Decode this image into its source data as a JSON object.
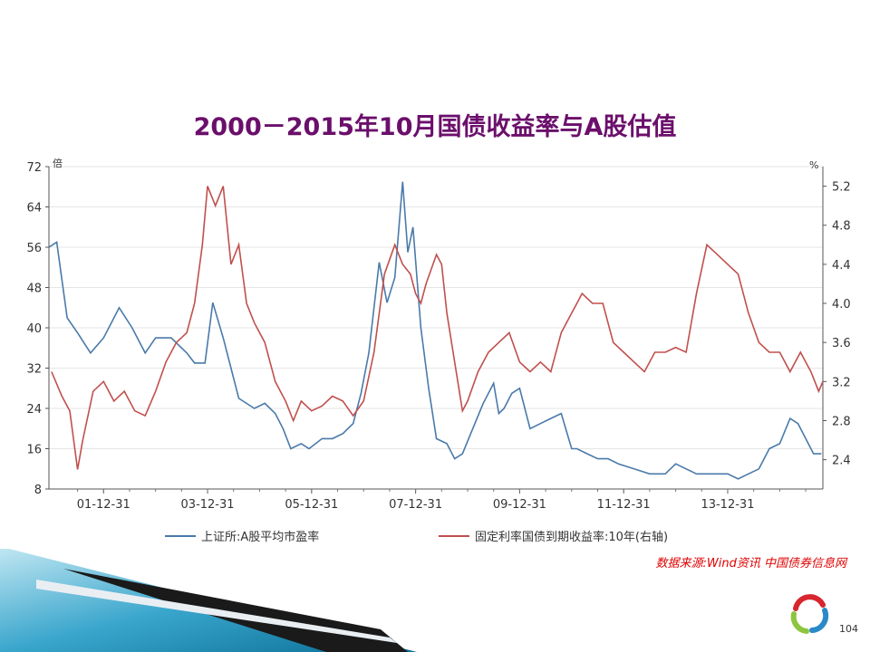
{
  "title": "2000－2015年10月国债收益率与A股估值",
  "source_note": "数据来源:Wind资讯 中国债券信息网",
  "page_number": "104",
  "colors": {
    "pe_series": "#4a7aaa",
    "yield_series": "#c0504d",
    "title": "#6b0f6b",
    "source": "#e00000"
  },
  "chart_data": {
    "type": "line",
    "left_axis": {
      "unit": "倍",
      "range": [
        8,
        72
      ],
      "ticks": [
        "72",
        "64",
        "56",
        "48",
        "40",
        "32",
        "24",
        "16",
        "8"
      ]
    },
    "right_axis": {
      "unit": "%",
      "range": [
        2.1,
        5.4
      ],
      "ticks": [
        "5.2",
        "4.8",
        "4.4",
        "4.0",
        "3.6",
        "3.2",
        "2.8",
        "2.4"
      ]
    },
    "x_ticks": [
      "01-12-31",
      "03-12-31",
      "05-12-31",
      "07-12-31",
      "09-12-31",
      "11-12-31",
      "13-12-31"
    ],
    "x_range": [
      2000.95,
      2015.83
    ],
    "grid": true,
    "series": [
      {
        "name": "上证所:A股平均市盈率",
        "axis": "left",
        "x": [
          2000.95,
          2001.1,
          2001.3,
          2001.5,
          2001.75,
          2002.0,
          2002.3,
          2002.55,
          2002.8,
          2003.0,
          2003.3,
          2003.6,
          2003.75,
          2003.95,
          2004.1,
          2004.3,
          2004.6,
          2004.9,
          2005.1,
          2005.3,
          2005.45,
          2005.6,
          2005.8,
          2005.95,
          2006.2,
          2006.4,
          2006.6,
          2006.8,
          2006.95,
          2007.1,
          2007.3,
          2007.45,
          2007.6,
          2007.75,
          2007.85,
          2007.95,
          2008.1,
          2008.25,
          2008.4,
          2008.6,
          2008.75,
          2008.9,
          2009.1,
          2009.3,
          2009.5,
          2009.6,
          2009.7,
          2009.85,
          2010.0,
          2010.2,
          2010.4,
          2010.6,
          2010.8,
          2011.0,
          2011.1,
          2011.3,
          2011.5,
          2011.7,
          2011.9,
          2012.2,
          2012.5,
          2012.8,
          2013.0,
          2013.2,
          2013.4,
          2013.6,
          2013.8,
          2014.0,
          2014.2,
          2014.4,
          2014.6,
          2014.8,
          2015.0,
          2015.2,
          2015.35,
          2015.5,
          2015.65,
          2015.8
        ],
        "values": [
          56,
          57,
          42,
          39,
          35,
          38,
          44,
          40,
          35,
          38,
          38,
          35,
          33,
          33,
          45,
          38,
          26,
          24,
          25,
          23,
          20,
          16,
          17,
          16,
          18,
          18,
          19,
          21,
          27,
          35,
          53,
          45,
          50,
          69,
          55,
          60,
          40,
          28,
          18,
          17,
          14,
          15,
          20,
          25,
          29,
          23,
          24,
          27,
          28,
          20,
          21,
          22,
          23,
          16,
          16,
          15,
          14,
          14,
          13,
          12,
          11,
          11,
          13,
          12,
          11,
          11,
          11,
          11,
          10,
          11,
          12,
          16,
          17,
          22,
          21,
          18,
          15,
          15
        ]
      },
      {
        "name": "固定利率国债到期收益率:10年(右轴)",
        "axis": "right",
        "x": [
          2001.0,
          2001.2,
          2001.35,
          2001.5,
          2001.6,
          2001.8,
          2002.0,
          2002.2,
          2002.4,
          2002.6,
          2002.8,
          2003.0,
          2003.2,
          2003.4,
          2003.6,
          2003.75,
          2003.9,
          2004.0,
          2004.15,
          2004.3,
          2004.45,
          2004.6,
          2004.75,
          2004.9,
          2005.1,
          2005.3,
          2005.5,
          2005.65,
          2005.8,
          2006.0,
          2006.2,
          2006.4,
          2006.6,
          2006.8,
          2007.0,
          2007.2,
          2007.4,
          2007.6,
          2007.75,
          2007.9,
          2008.0,
          2008.1,
          2008.2,
          2008.4,
          2008.5,
          2008.6,
          2008.75,
          2008.9,
          2009.0,
          2009.2,
          2009.4,
          2009.6,
          2009.8,
          2010.0,
          2010.2,
          2010.4,
          2010.6,
          2010.8,
          2011.0,
          2011.2,
          2011.4,
          2011.6,
          2011.8,
          2012.0,
          2012.2,
          2012.4,
          2012.6,
          2012.8,
          2013.0,
          2013.2,
          2013.4,
          2013.6,
          2013.8,
          2014.0,
          2014.2,
          2014.4,
          2014.6,
          2014.8,
          2015.0,
          2015.2,
          2015.4,
          2015.6,
          2015.75,
          2015.83
        ],
        "values": [
          3.3,
          3.05,
          2.9,
          2.3,
          2.6,
          3.1,
          3.2,
          3.0,
          3.1,
          2.9,
          2.85,
          3.1,
          3.4,
          3.6,
          3.7,
          4.0,
          4.6,
          5.2,
          5.0,
          5.2,
          4.4,
          4.6,
          4.0,
          3.8,
          3.6,
          3.2,
          3.0,
          2.8,
          3.0,
          2.9,
          2.95,
          3.05,
          3.0,
          2.85,
          3.0,
          3.5,
          4.3,
          4.6,
          4.4,
          4.3,
          4.1,
          4.0,
          4.2,
          4.5,
          4.4,
          3.9,
          3.4,
          2.9,
          3.0,
          3.3,
          3.5,
          3.6,
          3.7,
          3.4,
          3.3,
          3.4,
          3.3,
          3.7,
          3.9,
          4.1,
          4.0,
          4.0,
          3.6,
          3.5,
          3.4,
          3.3,
          3.5,
          3.5,
          3.55,
          3.5,
          4.1,
          4.6,
          4.5,
          4.4,
          4.3,
          3.9,
          3.6,
          3.5,
          3.5,
          3.3,
          3.5,
          3.3,
          3.1,
          3.2
        ]
      }
    ]
  }
}
